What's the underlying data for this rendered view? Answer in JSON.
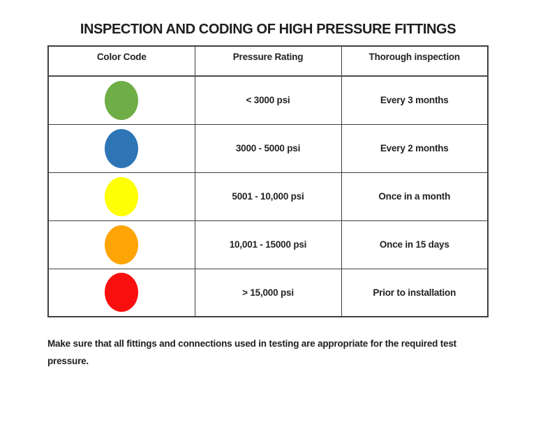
{
  "page": {
    "title": "INSPECTION AND CODING OF HIGH PRESSURE FITTINGS",
    "footer_lines": [
      "Make sure that all fittings and connections used in testing are appropriate for the required test",
      "pressure."
    ]
  },
  "table": {
    "headers": [
      "Color Code",
      "Pressure Rating",
      "Thorough inspection"
    ],
    "rows": [
      {
        "color_code": "green",
        "color_hex": "#6FAD47",
        "pressure_rating": "< 3000 psi",
        "thorough_inspection": "Every 3 months"
      },
      {
        "color_code": "blue",
        "color_hex": "#2E75B6",
        "pressure_rating": "3000 - 5000 psi",
        "thorough_inspection": "Every 2 months"
      },
      {
        "color_code": "yellow",
        "color_hex": "#FFFF05",
        "pressure_rating": "5001 - 10,000 psi",
        "thorough_inspection": "Once in a month"
      },
      {
        "color_code": "orange",
        "color_hex": "#FFA405",
        "pressure_rating": "10,001 - 15000 psi",
        "thorough_inspection": "Once in 15 days"
      },
      {
        "color_code": "red",
        "color_hex": "#FA0F0F",
        "pressure_rating": "> 15,000 psi",
        "thorough_inspection": "Prior to installation"
      }
    ]
  }
}
